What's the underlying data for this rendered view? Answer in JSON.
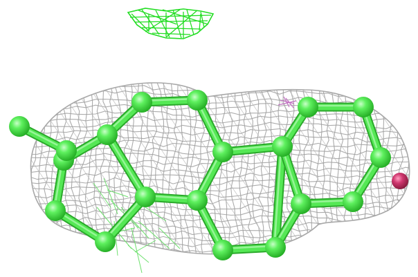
{
  "scene": {
    "background": "#ffffff",
    "mesh_color": "#9c9c9c",
    "top_mesh_color": "#22dd22",
    "atom_color": "#44e044",
    "bond_color": "#55e855",
    "heteroatom_color": "#c23060",
    "minor_mesh_color": "#c070c0"
  }
}
